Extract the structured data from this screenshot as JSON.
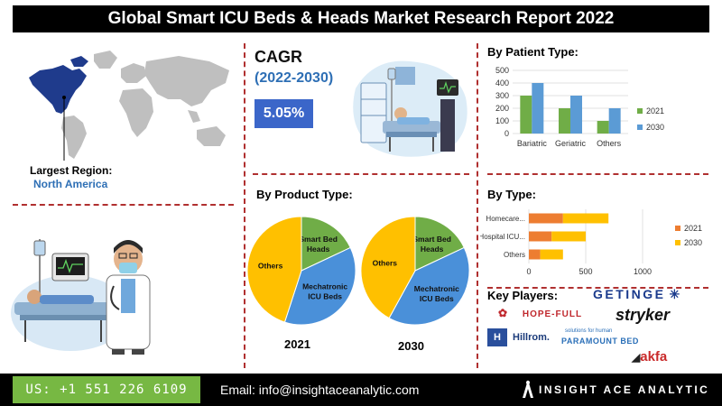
{
  "title": "Global Smart ICU Beds & Heads Market Research Report 2022",
  "region": {
    "label": "Largest Region:",
    "value": "North America"
  },
  "cagr": {
    "label": "CAGR",
    "period": "(2022-2030)",
    "value": "5.05%"
  },
  "headings": {
    "patient_type": "By Patient Type:",
    "product_type": "By Product Type:",
    "type": "By Type:",
    "key_players": "Key Players:"
  },
  "key_players": [
    "GETINGE",
    "HOPE-FULL",
    "stryker",
    "Hillrom.",
    "PARAMOUNT BED",
    "akfa"
  ],
  "paramount_tagline": "solutions for human",
  "footer": {
    "phone": "US: +1 551 226 6109",
    "email": "Email: info@insightaceanalytic.com",
    "brand": "INSIGHT ACE ANALYTIC"
  },
  "colors": {
    "series_2021": "#70ad47",
    "series_2030": "#5b9bd5",
    "type_2021": "#ed7d31",
    "type_2030": "#ffc000",
    "pie_others": "#ffc000",
    "pie_smart": "#70ad47",
    "pie_mecha": "#4a90d9",
    "accent_blue": "#3b66c9"
  },
  "chart_data": [
    {
      "type": "bar",
      "title": "By Patient Type:",
      "categories": [
        "Bariatric",
        "Geriatric",
        "Others"
      ],
      "series": [
        {
          "name": "2021",
          "values": [
            300,
            200,
            100
          ]
        },
        {
          "name": "2030",
          "values": [
            400,
            300,
            200
          ]
        }
      ],
      "ylim": [
        0,
        500
      ],
      "yticks": [
        0,
        100,
        200,
        300,
        400,
        500
      ],
      "legend": "right"
    },
    {
      "type": "pie",
      "title": "By Product Type:",
      "label": "2021",
      "slices": [
        {
          "name": "Smart Bed Heads",
          "value": 18
        },
        {
          "name": "Mechatronic ICU Beds",
          "value": 37
        },
        {
          "name": "Others",
          "value": 45
        }
      ]
    },
    {
      "type": "pie",
      "label": "2030",
      "slices": [
        {
          "name": "Smart Bed Heads",
          "value": 18
        },
        {
          "name": "Mechatronic ICU Beds",
          "value": 40
        },
        {
          "name": "Others",
          "value": 42
        }
      ]
    },
    {
      "type": "bar",
      "orientation": "horizontal",
      "stacked": true,
      "title": "By Type:",
      "categories": [
        "Homecare...",
        "Hospital ICU...",
        "Others"
      ],
      "series": [
        {
          "name": "2021",
          "values": [
            300,
            200,
            100
          ]
        },
        {
          "name": "2030",
          "values": [
            400,
            300,
            200
          ]
        }
      ],
      "xlim": [
        0,
        1000
      ],
      "xticks": [
        0,
        500,
        1000
      ],
      "legend": "right"
    }
  ]
}
